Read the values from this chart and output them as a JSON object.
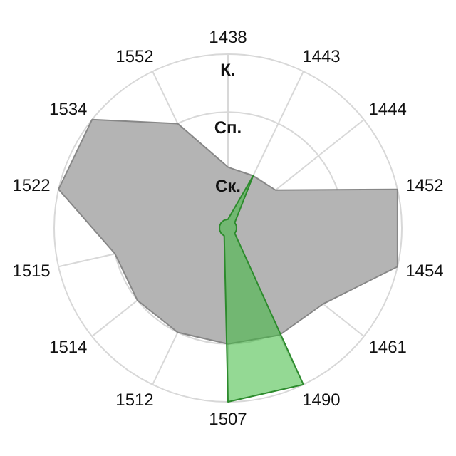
{
  "chart_data": {
    "type": "radar",
    "categories": [
      "1438",
      "1443",
      "1444",
      "1452",
      "1454",
      "1461",
      "1490",
      "1507",
      "1512",
      "1514",
      "1515",
      "1522",
      "1534",
      "1552"
    ],
    "ylim": [
      0,
      3
    ],
    "yticks": [
      {
        "value": 1,
        "label": "Ск."
      },
      {
        "value": 2,
        "label": "Сп."
      },
      {
        "value": 3,
        "label": "К."
      }
    ],
    "grid": true,
    "series": [
      {
        "color": "#b4b4b4",
        "values": [
          1.05,
          1,
          1.05,
          3,
          3,
          2.1,
          2.05,
          2,
          2,
          2,
          2,
          3,
          3,
          2
        ]
      },
      {
        "color": "#3cb93c",
        "values": [
          0.15,
          1,
          0.15,
          0.15,
          0.15,
          0.15,
          3,
          3,
          0.15,
          0.15,
          0.15,
          0.15,
          0.15,
          0.15
        ]
      }
    ]
  }
}
